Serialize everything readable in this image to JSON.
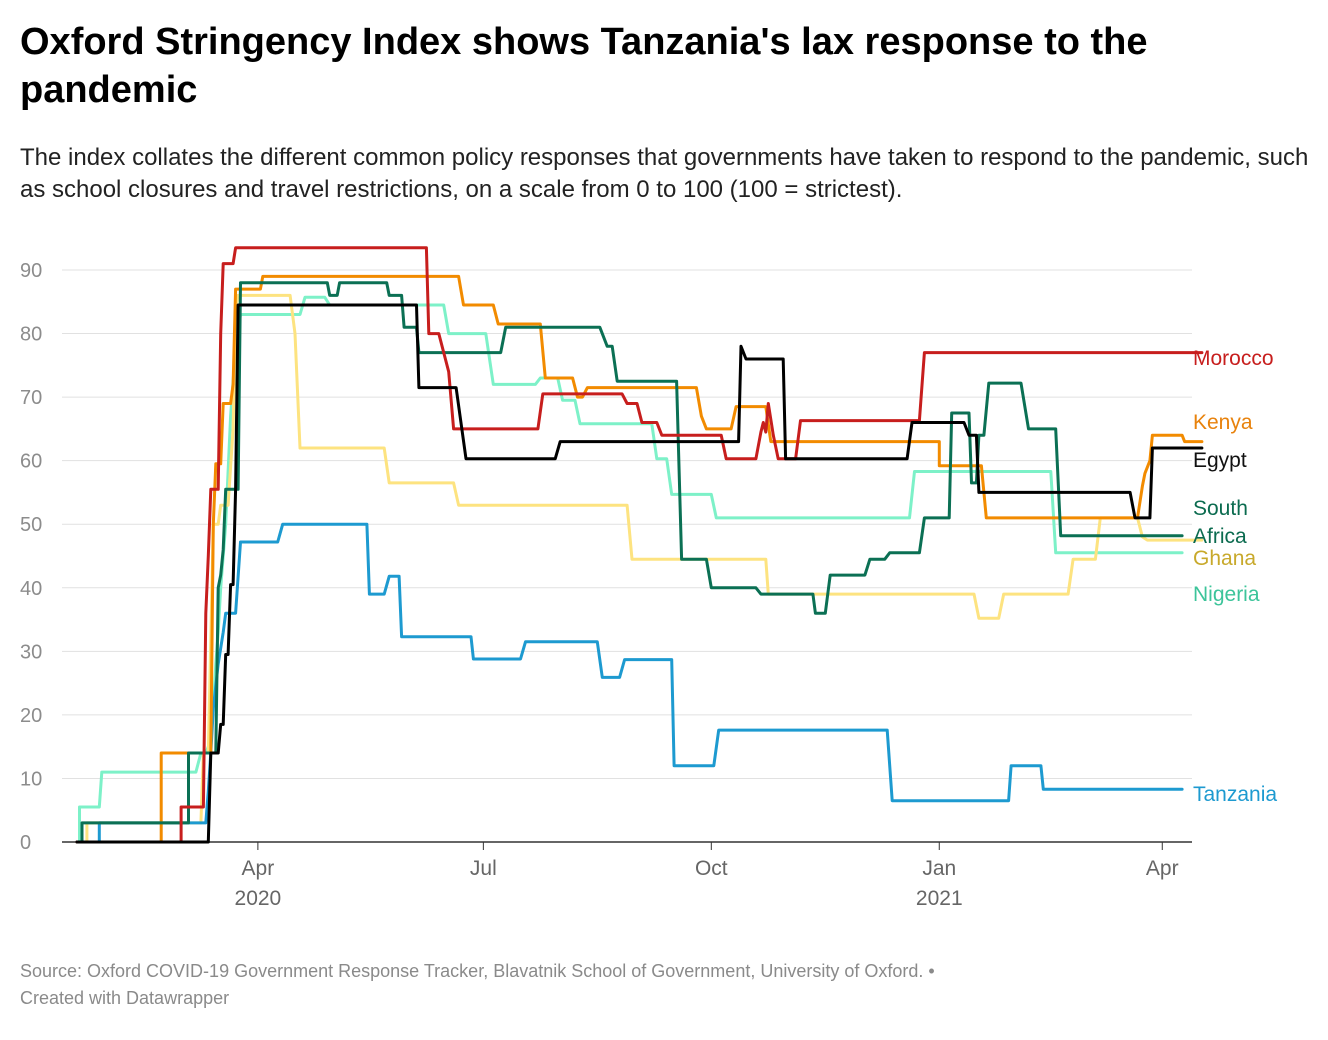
{
  "title": "Oxford Stringency Index shows Tanzania's lax response to the pandemic",
  "subtitle": "The index collates the different common policy responses that governments have taken to respond to the pandemic, such as school closures and travel restrictions, on a scale from 0 to 100 (100 = strictest).",
  "footer": {
    "source": "Source: Oxford COVID-19 Government Response Tracker, Blavatnik School of Government, University of Oxford. • ",
    "credit": "Created with Datawrapper"
  },
  "chart_data": {
    "type": "line",
    "title": "Oxford Stringency Index shows Tanzania's lax response to the pandemic",
    "xlabel": "",
    "ylabel": "",
    "ylim": [
      0,
      90
    ],
    "yticks": [
      "0",
      "10",
      "20",
      "30",
      "40",
      "50",
      "60",
      "70",
      "80",
      "90"
    ],
    "xlim": [
      0,
      450
    ],
    "xticks": [
      {
        "day": 73,
        "label": "Apr",
        "sub": "2020"
      },
      {
        "day": 164,
        "label": "Jul",
        "sub": ""
      },
      {
        "day": 256,
        "label": "Oct",
        "sub": ""
      },
      {
        "day": 348,
        "label": "Jan",
        "sub": "2021"
      },
      {
        "day": 438,
        "label": "Apr",
        "sub": ""
      }
    ],
    "x_unit": "days since 2020-01-19",
    "grid": true,
    "legend": "inline-right",
    "series": [
      {
        "name": "Morocco",
        "label": "Morocco",
        "color": "#c71e1d",
        "label_color": "#c71e1d",
        "points": [
          [
            0,
            0
          ],
          [
            42,
            0
          ],
          [
            42,
            5.5
          ],
          [
            51,
            5.5
          ],
          [
            52,
            36
          ],
          [
            53,
            45
          ],
          [
            54,
            55.5
          ],
          [
            57,
            55.5
          ],
          [
            58,
            80
          ],
          [
            59,
            91
          ],
          [
            63,
            91
          ],
          [
            64,
            93.5
          ],
          [
            141,
            93.5
          ],
          [
            142,
            80
          ],
          [
            146,
            80
          ],
          [
            150,
            74
          ],
          [
            152,
            65
          ],
          [
            186,
            65
          ],
          [
            188,
            70.5
          ],
          [
            220,
            70.5
          ],
          [
            222,
            69
          ],
          [
            226,
            69
          ],
          [
            228,
            66
          ],
          [
            234,
            66
          ],
          [
            236,
            64
          ],
          [
            260,
            64
          ],
          [
            262,
            60.3
          ],
          [
            274,
            60.3
          ],
          [
            276,
            64.5
          ],
          [
            277,
            66
          ],
          [
            278,
            64.5
          ],
          [
            279,
            69
          ],
          [
            281,
            64
          ],
          [
            283,
            60.3
          ],
          [
            290,
            60.3
          ],
          [
            292,
            66.3
          ],
          [
            340,
            66.3
          ],
          [
            342,
            77
          ],
          [
            454,
            77
          ]
        ]
      },
      {
        "name": "Kenya",
        "label": "Kenya",
        "color": "#f28b00",
        "label_color": "#e8820c",
        "points": [
          [
            0,
            0
          ],
          [
            34,
            0
          ],
          [
            34,
            14
          ],
          [
            54,
            14
          ],
          [
            55,
            50
          ],
          [
            56,
            59.5
          ],
          [
            58,
            59.5
          ],
          [
            59,
            69
          ],
          [
            62,
            69
          ],
          [
            63,
            72
          ],
          [
            64,
            87
          ],
          [
            74,
            87
          ],
          [
            75,
            89
          ],
          [
            154,
            89
          ],
          [
            156,
            84.5
          ],
          [
            168,
            84.5
          ],
          [
            170,
            81.5
          ],
          [
            187,
            81.5
          ],
          [
            189,
            73
          ],
          [
            200,
            73
          ],
          [
            202,
            70
          ],
          [
            204,
            70
          ],
          [
            206,
            71.5
          ],
          [
            250,
            71.5
          ],
          [
            252,
            67
          ],
          [
            254,
            65
          ],
          [
            264,
            65
          ],
          [
            266,
            68.5
          ],
          [
            278,
            68.5
          ],
          [
            280,
            63
          ],
          [
            348,
            63
          ],
          [
            348,
            59.2
          ],
          [
            352,
            59.2
          ],
          [
            353,
            59.2
          ],
          [
            365,
            59.2
          ],
          [
            367,
            51
          ],
          [
            428,
            51
          ],
          [
            430,
            56
          ],
          [
            431,
            58
          ],
          [
            433,
            60
          ],
          [
            434,
            64
          ],
          [
            446,
            64
          ],
          [
            447,
            63
          ],
          [
            454,
            63
          ]
        ]
      },
      {
        "name": "Egypt",
        "label": "Egypt",
        "color": "#000000",
        "label_color": "#111111",
        "points": [
          [
            0,
            0
          ],
          [
            53,
            0
          ],
          [
            54,
            14
          ],
          [
            55,
            14
          ],
          [
            57,
            14
          ],
          [
            58,
            18.5
          ],
          [
            59,
            18.5
          ],
          [
            60,
            29.5
          ],
          [
            61,
            29.5
          ],
          [
            62,
            40.5
          ],
          [
            63,
            40.5
          ],
          [
            64,
            55.5
          ],
          [
            65,
            84.5
          ],
          [
            137,
            84.5
          ],
          [
            138,
            71.5
          ],
          [
            153,
            71.5
          ],
          [
            157,
            60.3
          ],
          [
            193,
            60.3
          ],
          [
            195,
            63
          ],
          [
            267,
            63
          ],
          [
            268,
            78
          ],
          [
            270,
            76
          ],
          [
            285,
            76
          ],
          [
            286,
            60.3
          ],
          [
            335,
            60.3
          ],
          [
            337,
            66
          ],
          [
            358,
            66
          ],
          [
            360,
            64
          ],
          [
            363,
            64
          ],
          [
            364,
            55
          ],
          [
            425,
            55
          ],
          [
            427,
            51
          ],
          [
            433,
            51
          ],
          [
            434,
            62
          ],
          [
            454,
            62
          ]
        ]
      },
      {
        "name": "South Africa",
        "label": "South|Africa",
        "color": "#0b7054",
        "label_color": "#0b6b4f",
        "points": [
          [
            0,
            0
          ],
          [
            2,
            0
          ],
          [
            2,
            3
          ],
          [
            45,
            3
          ],
          [
            45,
            14
          ],
          [
            56,
            14
          ],
          [
            57,
            40
          ],
          [
            58,
            42
          ],
          [
            59,
            46
          ],
          [
            60,
            55.5
          ],
          [
            65,
            55.5
          ],
          [
            66,
            88
          ],
          [
            101,
            88
          ],
          [
            102,
            86
          ],
          [
            105,
            86
          ],
          [
            106,
            88
          ],
          [
            125,
            88
          ],
          [
            126,
            86
          ],
          [
            131,
            86
          ],
          [
            132,
            81
          ],
          [
            137,
            81
          ],
          [
            138,
            77
          ],
          [
            171,
            77
          ],
          [
            173,
            81
          ],
          [
            211,
            81
          ],
          [
            214,
            78
          ],
          [
            216,
            78
          ],
          [
            218,
            72.5
          ],
          [
            242,
            72.5
          ],
          [
            244,
            44.5
          ],
          [
            254,
            44.5
          ],
          [
            256,
            40
          ],
          [
            274,
            40
          ],
          [
            276,
            39
          ],
          [
            297,
            39
          ],
          [
            298,
            36
          ],
          [
            302,
            36
          ],
          [
            304,
            42
          ],
          [
            318,
            42
          ],
          [
            320,
            44.5
          ],
          [
            326,
            44.5
          ],
          [
            328,
            45.5
          ],
          [
            340,
            45.5
          ],
          [
            342,
            51
          ],
          [
            352,
            51
          ],
          [
            353,
            67.5
          ],
          [
            360,
            67.5
          ],
          [
            361,
            56.5
          ],
          [
            363,
            56.5
          ],
          [
            364,
            64
          ],
          [
            366,
            64
          ],
          [
            368,
            72.2
          ],
          [
            381,
            72.2
          ],
          [
            384,
            65
          ],
          [
            395,
            65
          ],
          [
            397,
            48.2
          ],
          [
            446,
            48.2
          ]
        ]
      },
      {
        "name": "Ghana",
        "label": "Ghana",
        "color": "#fde380",
        "label_color": "#c8a92b",
        "points": [
          [
            0,
            0
          ],
          [
            4,
            0
          ],
          [
            4,
            3
          ],
          [
            50,
            3
          ],
          [
            51,
            14
          ],
          [
            53,
            14
          ],
          [
            55,
            50
          ],
          [
            57,
            50
          ],
          [
            58,
            53
          ],
          [
            60,
            53
          ],
          [
            61,
            53
          ],
          [
            63,
            65
          ],
          [
            64,
            84
          ],
          [
            65,
            86
          ],
          [
            86,
            86
          ],
          [
            88,
            80
          ],
          [
            90,
            62
          ],
          [
            124,
            62
          ],
          [
            126,
            56.5
          ],
          [
            152,
            56.5
          ],
          [
            154,
            53
          ],
          [
            222,
            53
          ],
          [
            224,
            44.5
          ],
          [
            278,
            44.5
          ],
          [
            279,
            39
          ],
          [
            362,
            39
          ],
          [
            364,
            35.2
          ],
          [
            372,
            35.2
          ],
          [
            374,
            39
          ],
          [
            400,
            39
          ],
          [
            402,
            44.5
          ],
          [
            411,
            44.5
          ],
          [
            413,
            51
          ],
          [
            428,
            51
          ],
          [
            430,
            48
          ],
          [
            432,
            47.5
          ],
          [
            454,
            47.5
          ]
        ]
      },
      {
        "name": "Nigeria",
        "label": "Nigeria",
        "color": "#7df1c8",
        "label_color": "#3cc49a",
        "points": [
          [
            0,
            0
          ],
          [
            1,
            0
          ],
          [
            1,
            5.5
          ],
          [
            9,
            5.5
          ],
          [
            10,
            11
          ],
          [
            46,
            11
          ],
          [
            48,
            11
          ],
          [
            50,
            14
          ],
          [
            52,
            14
          ],
          [
            54,
            16
          ],
          [
            55,
            21
          ],
          [
            56,
            28
          ],
          [
            57,
            33
          ],
          [
            58,
            40
          ],
          [
            60,
            50
          ],
          [
            62,
            67
          ],
          [
            64,
            78
          ],
          [
            66,
            83
          ],
          [
            90,
            83
          ],
          [
            92,
            85.7
          ],
          [
            100,
            85.7
          ],
          [
            102,
            84.5
          ],
          [
            148,
            84.5
          ],
          [
            150,
            80
          ],
          [
            165,
            80
          ],
          [
            168,
            72
          ],
          [
            185,
            72
          ],
          [
            187,
            73
          ],
          [
            194,
            73
          ],
          [
            196,
            69.5
          ],
          [
            201,
            69.5
          ],
          [
            203,
            65.8
          ],
          [
            232,
            65.8
          ],
          [
            234,
            60.3
          ],
          [
            238,
            60.3
          ],
          [
            240,
            54.7
          ],
          [
            256,
            54.7
          ],
          [
            258,
            51
          ],
          [
            336,
            51
          ],
          [
            338,
            58.3
          ],
          [
            393,
            58.3
          ],
          [
            395,
            45.5
          ],
          [
            446,
            45.5
          ]
        ]
      },
      {
        "name": "Tanzania",
        "label": "Tanzania",
        "color": "#1d9ad0",
        "label_color": "#1d9ad0",
        "points": [
          [
            0,
            0
          ],
          [
            9,
            0
          ],
          [
            9,
            3
          ],
          [
            52,
            3
          ],
          [
            53,
            8
          ],
          [
            54,
            14
          ],
          [
            55,
            21
          ],
          [
            57,
            28
          ],
          [
            59,
            33
          ],
          [
            60,
            36
          ],
          [
            64,
            36
          ],
          [
            66,
            47.2
          ],
          [
            81,
            47.2
          ],
          [
            83,
            50
          ],
          [
            117,
            50
          ],
          [
            118,
            39
          ],
          [
            124,
            39
          ],
          [
            126,
            41.8
          ],
          [
            130,
            41.8
          ],
          [
            131,
            32.3
          ],
          [
            159,
            32.3
          ],
          [
            160,
            28.8
          ],
          [
            179,
            28.8
          ],
          [
            181,
            31.5
          ],
          [
            210,
            31.5
          ],
          [
            212,
            25.9
          ],
          [
            219,
            25.9
          ],
          [
            221,
            28.7
          ],
          [
            240,
            28.7
          ],
          [
            241,
            12
          ],
          [
            257,
            12
          ],
          [
            259,
            17.6
          ],
          [
            327,
            17.6
          ],
          [
            329,
            6.5
          ],
          [
            376,
            6.5
          ],
          [
            377,
            12
          ],
          [
            389,
            12
          ],
          [
            390,
            8.3
          ],
          [
            446,
            8.3
          ]
        ]
      }
    ]
  }
}
